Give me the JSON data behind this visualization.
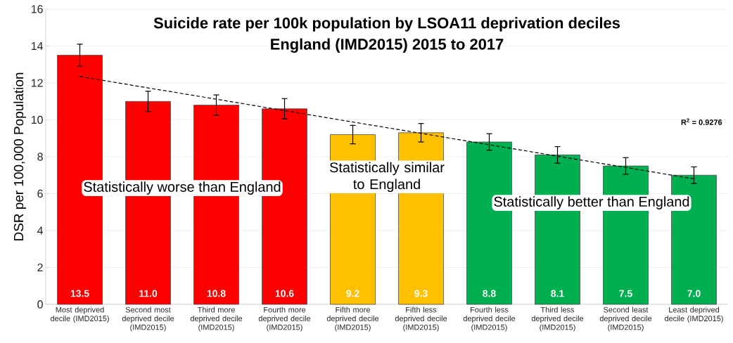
{
  "chart_data": {
    "type": "bar",
    "title": "Suicide rate per 100k population by LSOA11 deprivation deciles",
    "subtitle": "England (IMD2015) 2015 to 2017",
    "ylabel": "DSR per 100,000 Population",
    "categories": [
      "Most deprived decile (IMD2015)",
      "Second most deprived decile (IMD2015)",
      "Third more deprived decile (IMD2015)",
      "Fourth more deprived decile (IMD2015)",
      "Fifth more deprived decile (IMD2015)",
      "Fifth less deprived decile (IMD2015)",
      "Fourth less deprived decile (IMD2015)",
      "Third less deprived decile (IMD2015)",
      "Second least deprived decile (IMD2015)",
      "Least deprived decile (IMD2015)"
    ],
    "series": [
      {
        "values": [
          13.5,
          11.0,
          10.8,
          10.6,
          9.2,
          9.3,
          8.8,
          8.1,
          7.5,
          7.0
        ],
        "value_labels": [
          "13.5",
          "11.0",
          "10.8",
          "10.6",
          "9.2",
          "9.3",
          "8.8",
          "8.1",
          "7.5",
          "7.0"
        ],
        "colors": [
          "#ff0000",
          "#ff0000",
          "#ff0000",
          "#ff0000",
          "#ffc000",
          "#ffc000",
          "#00b050",
          "#00b050",
          "#00b050",
          "#00b050"
        ],
        "errors": [
          0.6,
          0.55,
          0.55,
          0.55,
          0.5,
          0.5,
          0.45,
          0.45,
          0.45,
          0.45
        ]
      },
      {
        "type": "line",
        "color": "#000000",
        "line_style": "dashed",
        "values": [
          12.35,
          11.73,
          11.12,
          10.5,
          9.88,
          9.27,
          8.65,
          8.03,
          7.42,
          6.8
        ]
      }
    ],
    "ylim": [
      0,
      16
    ],
    "yticks": [
      0,
      2,
      4,
      6,
      8,
      10,
      12,
      14,
      16
    ],
    "grid": "y",
    "annotations": [
      "Statistically worse than England",
      "Statistically similar to England",
      "Statistically better than England",
      "R$^{2}$ = 0.9276"
    ]
  }
}
